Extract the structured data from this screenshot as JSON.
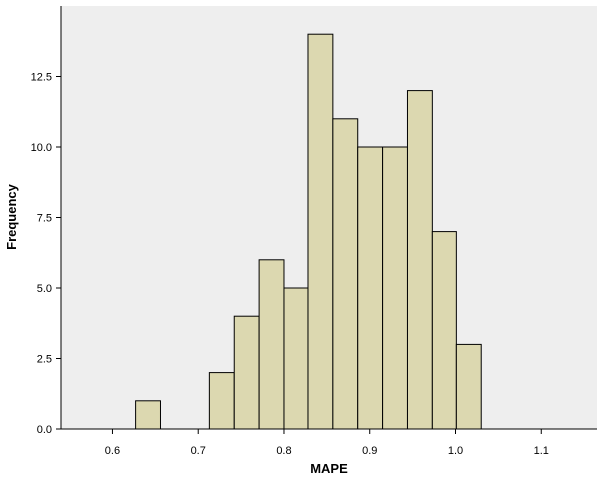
{
  "chart_data": {
    "type": "bar",
    "subtype": "histogram",
    "xlabel": "MAPE",
    "ylabel": "Frequency",
    "xlim": [
      0.54,
      1.165
    ],
    "ylim": [
      0,
      15
    ],
    "x_ticks": [
      {
        "value": 0.6,
        "label": "0.6"
      },
      {
        "value": 0.7,
        "label": "0.7"
      },
      {
        "value": 0.8,
        "label": "0.8"
      },
      {
        "value": 0.9,
        "label": "0.9"
      },
      {
        "value": 1.0,
        "label": "1.0"
      },
      {
        "value": 1.1,
        "label": "1.1"
      }
    ],
    "y_ticks": [
      {
        "value": 0,
        "label": "0.0"
      },
      {
        "value": 2.5,
        "label": "2.5"
      },
      {
        "value": 5,
        "label": "5.0"
      },
      {
        "value": 7.5,
        "label": "7.5"
      },
      {
        "value": 10,
        "label": "10.0"
      },
      {
        "value": 12.5,
        "label": "12.5"
      }
    ],
    "bins": [
      {
        "x0": 0.627,
        "x1": 0.656,
        "count": 1
      },
      {
        "x0": 0.713,
        "x1": 0.742,
        "count": 2
      },
      {
        "x0": 0.742,
        "x1": 0.771,
        "count": 4
      },
      {
        "x0": 0.771,
        "x1": 0.8,
        "count": 6
      },
      {
        "x0": 0.8,
        "x1": 0.828,
        "count": 5
      },
      {
        "x0": 0.828,
        "x1": 0.857,
        "count": 14
      },
      {
        "x0": 0.857,
        "x1": 0.886,
        "count": 11
      },
      {
        "x0": 0.886,
        "x1": 0.915,
        "count": 10
      },
      {
        "x0": 0.915,
        "x1": 0.944,
        "count": 10
      },
      {
        "x0": 0.944,
        "x1": 0.973,
        "count": 12
      },
      {
        "x0": 0.973,
        "x1": 1.001,
        "count": 7
      },
      {
        "x0": 1.001,
        "x1": 1.03,
        "count": 3
      }
    ],
    "grid": false,
    "colors": {
      "plot_background": "#eeeeee",
      "bar_fill": "#dcd8b0",
      "bar_stroke": "#000000",
      "axis": "#000000"
    }
  }
}
